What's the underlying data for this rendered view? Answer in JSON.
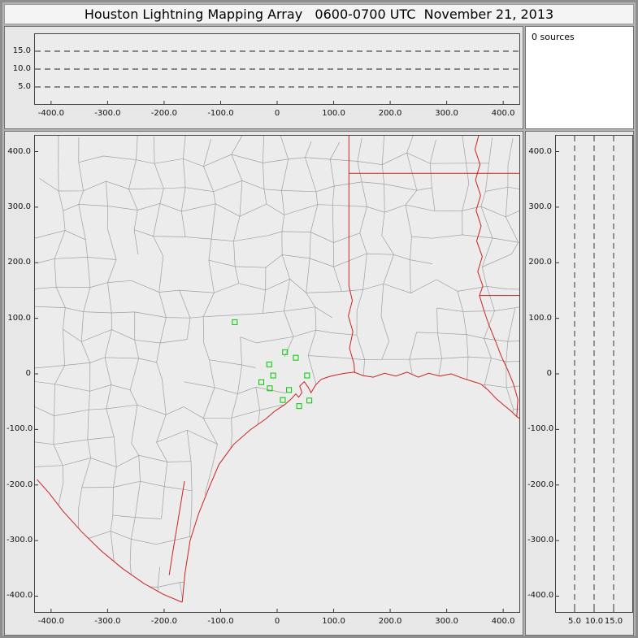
{
  "window": {
    "title": "Houston Lightning Mapping Array   0600-0700 UTC  November 21, 2013"
  },
  "source_count_panel": {
    "label": "0 sources"
  },
  "colors": {
    "station_marker": "#00c800",
    "state_boundary": "#cc2222",
    "county_boundary": "#9f9f9f",
    "plot_background": "#ececec",
    "panel_background": "#e7e7e7",
    "titlebar_background": "#f4f4f4",
    "info_panel_background": "#ffffff",
    "window_frame": "#b4b4b4",
    "dashed_gridline": "#222222",
    "axis_text": "#111111"
  },
  "chart_data": [
    {
      "type": "scatter",
      "panel": "altitude-vs-east-west",
      "description": "Height (km) vs east-west distance (km); no lightning source points plotted",
      "x_axis": {
        "range": [
          -430,
          430
        ],
        "tick_values": [
          -400,
          -300,
          -200,
          -100,
          0,
          100,
          200,
          300,
          400
        ],
        "tick_labels": [
          "-400.0",
          "-300.0",
          "-200.0",
          "-100.0",
          "0",
          "100.0",
          "200.0",
          "300.0",
          "400.0"
        ]
      },
      "y_axis": {
        "range": [
          0,
          20
        ],
        "tick_values": [
          15,
          10,
          5
        ],
        "tick_labels": [
          "15.0",
          "10.0",
          "5.0"
        ],
        "dashed_gridlines": [
          5,
          10,
          15
        ]
      },
      "points": [],
      "source_count": 0
    },
    {
      "type": "scatter",
      "panel": "plan-view-map",
      "description": "Plan view, Houston-centered km grid with county lines (gray), state borders and coastline (red); green squares are LMA stations; no lightning source points plotted",
      "x_axis": {
        "range": [
          -430,
          430
        ],
        "tick_values": [
          -400,
          -300,
          -200,
          -100,
          0,
          100,
          200,
          300,
          400
        ],
        "tick_labels": [
          "-400.0",
          "-300.0",
          "-200.0",
          "-100.0",
          "0",
          "100.0",
          "200.0",
          "300.0",
          "400.0"
        ]
      },
      "y_axis": {
        "range": [
          -430,
          430
        ],
        "tick_values": [
          400,
          300,
          200,
          100,
          0,
          -100,
          -200,
          -300,
          -400
        ],
        "tick_labels": [
          "400.0",
          "300.0",
          "200.0",
          "100.0",
          "0",
          "-100.0",
          "-200.0",
          "-300.0",
          "-400.0"
        ]
      },
      "stations_km": [
        [
          -75,
          93
        ],
        [
          14,
          39
        ],
        [
          33,
          29
        ],
        [
          -14,
          17
        ],
        [
          -28,
          -15
        ],
        [
          -7,
          -3
        ],
        [
          53,
          -3
        ],
        [
          -13,
          -26
        ],
        [
          21,
          -29
        ],
        [
          10,
          -47
        ],
        [
          39,
          -58
        ],
        [
          57,
          -48
        ]
      ],
      "points": [],
      "source_count": 0
    },
    {
      "type": "scatter",
      "panel": "altitude-vs-north-south",
      "description": "North-south distance (km) vs height (km); no lightning source points plotted",
      "x_axis": {
        "range": [
          0,
          20
        ],
        "tick_values": [
          5,
          10,
          15
        ],
        "tick_labels": [
          "5.0",
          "10.0",
          "15.0"
        ],
        "dashed_gridlines": [
          5,
          10,
          15
        ]
      },
      "y_axis": {
        "range": [
          -430,
          430
        ],
        "tick_values": [
          400,
          300,
          200,
          100,
          0,
          -100,
          -200,
          -300,
          -400
        ],
        "tick_labels": [
          "400.0",
          "300.0",
          "200.0",
          "100.0",
          "0",
          "-100.0",
          "-200.0",
          "-300.0",
          "-400.0"
        ]
      },
      "points": [],
      "source_count": 0
    }
  ]
}
